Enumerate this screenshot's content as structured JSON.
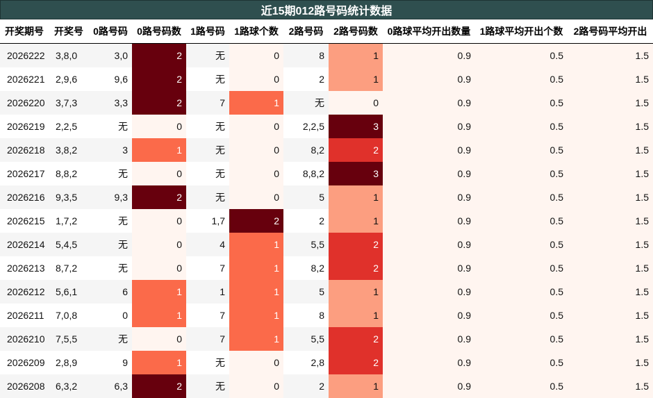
{
  "title": "近15期012路号码统计数据",
  "chart_data": {
    "type": "table",
    "title": "近15期012路号码统计数据",
    "columns": [
      "开奖期号",
      "开奖号",
      "0路号码",
      "0路号码数",
      "1路号码",
      "1路球个数",
      "2路号码",
      "2路号码数",
      "0路球平均开出数量",
      "1路球平均开出个数",
      "2路号码平均开出"
    ],
    "rows": [
      [
        "2026222",
        "3,8,0",
        "3,0",
        "2",
        "无",
        "0",
        "8",
        "1",
        "0.9",
        "0.5",
        "1.5"
      ],
      [
        "2026221",
        "2,9,6",
        "9,6",
        "2",
        "无",
        "0",
        "2",
        "1",
        "0.9",
        "0.5",
        "1.5"
      ],
      [
        "2026220",
        "3,7,3",
        "3,3",
        "2",
        "7",
        "1",
        "无",
        "0",
        "0.9",
        "0.5",
        "1.5"
      ],
      [
        "2026219",
        "2,2,5",
        "无",
        "0",
        "无",
        "0",
        "2,2,5",
        "3",
        "0.9",
        "0.5",
        "1.5"
      ],
      [
        "2026218",
        "3,8,2",
        "3",
        "1",
        "无",
        "0",
        "8,2",
        "2",
        "0.9",
        "0.5",
        "1.5"
      ],
      [
        "2026217",
        "8,8,2",
        "无",
        "0",
        "无",
        "0",
        "8,8,2",
        "3",
        "0.9",
        "0.5",
        "1.5"
      ],
      [
        "2026216",
        "9,3,5",
        "9,3",
        "2",
        "无",
        "0",
        "5",
        "1",
        "0.9",
        "0.5",
        "1.5"
      ],
      [
        "2026215",
        "1,7,2",
        "无",
        "0",
        "1,7",
        "2",
        "2",
        "1",
        "0.9",
        "0.5",
        "1.5"
      ],
      [
        "2026214",
        "5,4,5",
        "无",
        "0",
        "4",
        "1",
        "5,5",
        "2",
        "0.9",
        "0.5",
        "1.5"
      ],
      [
        "2026213",
        "8,7,2",
        "无",
        "0",
        "7",
        "1",
        "8,2",
        "2",
        "0.9",
        "0.5",
        "1.5"
      ],
      [
        "2026212",
        "5,6,1",
        "6",
        "1",
        "1",
        "1",
        "5",
        "1",
        "0.9",
        "0.5",
        "1.5"
      ],
      [
        "2026211",
        "7,0,8",
        "0",
        "1",
        "7",
        "1",
        "8",
        "1",
        "0.9",
        "0.5",
        "1.5"
      ],
      [
        "2026210",
        "7,5,5",
        "无",
        "0",
        "7",
        "1",
        "5,5",
        "2",
        "0.9",
        "0.5",
        "1.5"
      ],
      [
        "2026209",
        "2,8,9",
        "9",
        "1",
        "无",
        "0",
        "2,8",
        "2",
        "0.9",
        "0.5",
        "1.5"
      ],
      [
        "2026208",
        "6,3,2",
        "6,3",
        "2",
        "无",
        "0",
        "2",
        "1",
        "0.9",
        "0.5",
        "1.5"
      ]
    ],
    "heatmap_columns": [
      3,
      5,
      7
    ],
    "colors": {
      "header_bg": "#2f4f4f",
      "level_0": "#fff5f0",
      "level_1_light": "#fc9e80",
      "level_1_mid": "#fb6a4a",
      "level_2_red": "#e0312b",
      "level_dark": "#67000d"
    }
  }
}
